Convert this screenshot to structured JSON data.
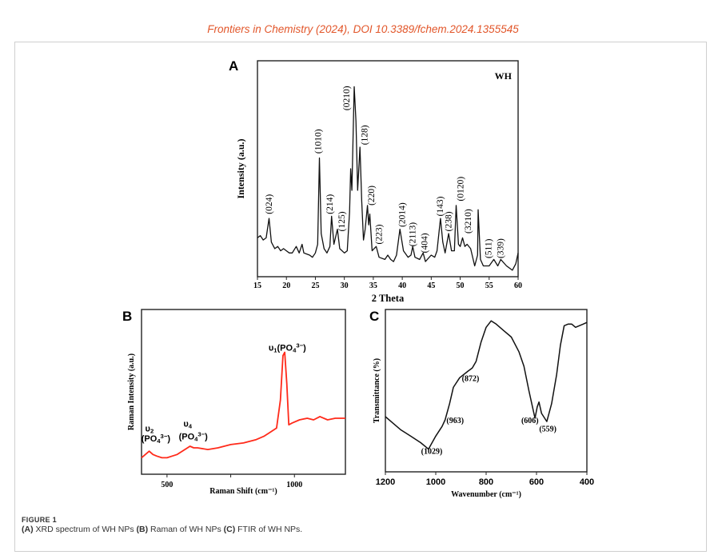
{
  "header": "Frontiers in Chemistry (2024), DOI 10.3389/fchem.2024.1355545",
  "caption": {
    "figure_label": "FIGURE 1",
    "parts": [
      {
        "tag": "(A)",
        "text": " XRD spectrum of WH NPs "
      },
      {
        "tag": "(B)",
        "text": " Raman of WH NPs "
      },
      {
        "tag": "(C)",
        "text": " FTIR of WH NPs."
      }
    ]
  },
  "colors": {
    "xrd": "#111111",
    "raman": "#ff2a1a",
    "ftir": "#111111",
    "header": "#e2562a"
  },
  "chart_data": [
    {
      "panel": "A",
      "type": "line",
      "title": "WH",
      "xlabel": "2 Theta",
      "ylabel": "Intensity (a.u.)",
      "xlim": [
        15,
        60
      ],
      "ylim": [
        0,
        100
      ],
      "xticks": [
        15,
        20,
        25,
        30,
        35,
        40,
        45,
        50,
        55,
        60
      ],
      "grid": false,
      "points": [
        [
          15,
          18
        ],
        [
          15.5,
          19
        ],
        [
          16,
          17
        ],
        [
          16.5,
          18
        ],
        [
          17,
          27
        ],
        [
          17.4,
          16
        ],
        [
          18,
          13
        ],
        [
          18.5,
          14
        ],
        [
          19,
          12
        ],
        [
          19.5,
          13
        ],
        [
          20,
          12
        ],
        [
          20.5,
          11
        ],
        [
          21,
          11
        ],
        [
          21.7,
          14
        ],
        [
          22.2,
          11
        ],
        [
          22.7,
          15
        ],
        [
          23,
          11
        ],
        [
          24,
          10
        ],
        [
          24.5,
          9
        ],
        [
          25,
          11
        ],
        [
          25.4,
          15
        ],
        [
          25.7,
          55
        ],
        [
          26,
          20
        ],
        [
          26.5,
          13
        ],
        [
          27,
          11
        ],
        [
          27.5,
          14
        ],
        [
          27.8,
          28
        ],
        [
          28.2,
          15
        ],
        [
          28.8,
          22
        ],
        [
          29.2,
          13
        ],
        [
          30,
          11
        ],
        [
          30.5,
          12
        ],
        [
          30.9,
          30
        ],
        [
          31.1,
          50
        ],
        [
          31.3,
          40
        ],
        [
          31.7,
          88
        ],
        [
          32,
          72
        ],
        [
          32.3,
          40
        ],
        [
          32.7,
          60
        ],
        [
          33,
          35
        ],
        [
          33.3,
          17
        ],
        [
          33.6,
          22
        ],
        [
          34,
          33
        ],
        [
          34.2,
          24
        ],
        [
          34.4,
          29
        ],
        [
          34.8,
          12
        ],
        [
          35.5,
          14
        ],
        [
          36,
          9
        ],
        [
          37,
          8
        ],
        [
          37.5,
          10
        ],
        [
          38,
          8
        ],
        [
          38.5,
          7
        ],
        [
          39,
          10
        ],
        [
          39.6,
          22
        ],
        [
          40.2,
          12
        ],
        [
          41,
          9
        ],
        [
          41.5,
          10
        ],
        [
          41.8,
          14
        ],
        [
          42.2,
          9
        ],
        [
          43,
          8
        ],
        [
          43.6,
          11
        ],
        [
          44,
          7
        ],
        [
          45,
          10
        ],
        [
          45.6,
          9
        ],
        [
          46,
          12
        ],
        [
          46.6,
          27
        ],
        [
          47,
          16
        ],
        [
          47.4,
          11
        ],
        [
          48,
          20
        ],
        [
          48.5,
          12
        ],
        [
          49,
          12
        ],
        [
          49.3,
          33
        ],
        [
          49.7,
          15
        ],
        [
          50,
          14
        ],
        [
          50.4,
          18
        ],
        [
          50.8,
          14
        ],
        [
          51.2,
          15
        ],
        [
          51.8,
          13
        ],
        [
          52.5,
          5
        ],
        [
          53,
          10
        ],
        [
          53.1,
          31
        ],
        [
          53.5,
          8
        ],
        [
          54,
          5
        ],
        [
          55,
          5
        ],
        [
          55.8,
          8
        ],
        [
          56.5,
          5
        ],
        [
          57,
          8
        ],
        [
          58,
          5
        ],
        [
          59,
          3
        ],
        [
          59.6,
          6
        ],
        [
          60,
          11
        ]
      ],
      "annotations": [
        {
          "text": "(024)",
          "x": 16.9,
          "y": 29
        },
        {
          "text": "(1010)",
          "x": 25.4,
          "y": 57
        },
        {
          "text": "(214)",
          "x": 27.4,
          "y": 29
        },
        {
          "text": "(125)",
          "x": 29.5,
          "y": 21
        },
        {
          "text": "(0210)",
          "x": 30.3,
          "y": 77
        },
        {
          "text": "(128)",
          "x": 33.4,
          "y": 61
        },
        {
          "text": "(220)",
          "x": 34.6,
          "y": 33
        },
        {
          "text": "(223)",
          "x": 35.9,
          "y": 15
        },
        {
          "text": "(2014)",
          "x": 39.9,
          "y": 23
        },
        {
          "text": "(2113)",
          "x": 41.7,
          "y": 14
        },
        {
          "text": "(404)",
          "x": 43.8,
          "y": 11
        },
        {
          "text": "(143)",
          "x": 46.5,
          "y": 28
        },
        {
          "text": "(238)",
          "x": 47.9,
          "y": 21
        },
        {
          "text": "(0120)",
          "x": 50.0,
          "y": 35
        },
        {
          "text": "(3210)",
          "x": 51.3,
          "y": 20
        },
        {
          "text": "(511)",
          "x": 54.8,
          "y": 8.5
        },
        {
          "text": "(339)",
          "x": 56.9,
          "y": 8.5
        }
      ]
    },
    {
      "panel": "B",
      "type": "line",
      "xlabel": "Raman Shift (cm⁻¹)",
      "ylabel": "Raman Intensity (a.u.)",
      "xlim": [
        400,
        1200
      ],
      "ylim": [
        0,
        100
      ],
      "xticks": [
        500,
        750,
        1000
      ],
      "xticklabels": [
        "500",
        "",
        "1000"
      ],
      "grid": false,
      "points": [
        [
          400,
          10
        ],
        [
          415,
          12
        ],
        [
          430,
          14
        ],
        [
          445,
          12
        ],
        [
          460,
          11
        ],
        [
          480,
          10
        ],
        [
          500,
          10
        ],
        [
          520,
          11
        ],
        [
          540,
          12
        ],
        [
          570,
          15
        ],
        [
          590,
          17
        ],
        [
          605,
          16
        ],
        [
          620,
          16
        ],
        [
          660,
          15
        ],
        [
          700,
          16
        ],
        [
          750,
          18
        ],
        [
          800,
          19
        ],
        [
          850,
          21
        ],
        [
          880,
          23
        ],
        [
          900,
          25
        ],
        [
          930,
          28
        ],
        [
          945,
          45
        ],
        [
          955,
          72
        ],
        [
          962,
          74
        ],
        [
          970,
          55
        ],
        [
          978,
          30
        ],
        [
          990,
          31
        ],
        [
          1020,
          33
        ],
        [
          1050,
          34
        ],
        [
          1075,
          33
        ],
        [
          1100,
          35
        ],
        [
          1130,
          33
        ],
        [
          1160,
          34
        ],
        [
          1200,
          34
        ]
      ],
      "annotations": [
        {
          "x": 972,
          "y": 75,
          "segments": [
            {
              "t": "υ"
            },
            {
              "t": "1",
              "s": "sub"
            },
            {
              "t": "(PO"
            },
            {
              "t": "4",
              "s": "sub"
            },
            {
              "t": "3−",
              "s": "sup"
            },
            {
              "t": ")"
            }
          ]
        },
        {
          "x": 431,
          "y": 26,
          "segments": [
            {
              "t": "υ"
            },
            {
              "t": "2",
              "s": "sub"
            }
          ]
        },
        {
          "x": 456,
          "y": 20,
          "segments": [
            {
              "t": "(PO"
            },
            {
              "t": "4",
              "s": "sub"
            },
            {
              "t": "3−",
              "s": "sup"
            },
            {
              "t": ")"
            }
          ]
        },
        {
          "x": 581,
          "y": 29,
          "segments": [
            {
              "t": "υ"
            },
            {
              "t": "4",
              "s": "sub"
            }
          ]
        },
        {
          "x": 603,
          "y": 21,
          "segments": [
            {
              "t": "(PO"
            },
            {
              "t": "4",
              "s": "sub"
            },
            {
              "t": "3−",
              "s": "sup"
            },
            {
              "t": ")"
            }
          ]
        }
      ]
    },
    {
      "panel": "C",
      "type": "line",
      "xlabel": "Wavenumber (cm⁻¹)",
      "ylabel": "Transmittance (%)",
      "xlim": [
        1200,
        400
      ],
      "ylim": [
        0,
        100
      ],
      "xticks": [
        1200,
        1000,
        800,
        600,
        400
      ],
      "grid": false,
      "points": [
        [
          1200,
          34
        ],
        [
          1170,
          30
        ],
        [
          1140,
          26
        ],
        [
          1100,
          22
        ],
        [
          1060,
          18
        ],
        [
          1029,
          14
        ],
        [
          1000,
          22
        ],
        [
          975,
          28
        ],
        [
          963,
          32
        ],
        [
          945,
          42
        ],
        [
          930,
          52
        ],
        [
          905,
          58
        ],
        [
          872,
          62
        ],
        [
          855,
          64
        ],
        [
          840,
          68
        ],
        [
          820,
          80
        ],
        [
          800,
          89
        ],
        [
          780,
          93
        ],
        [
          760,
          91
        ],
        [
          730,
          87
        ],
        [
          700,
          83
        ],
        [
          670,
          74
        ],
        [
          650,
          65
        ],
        [
          630,
          50
        ],
        [
          606,
          33
        ],
        [
          597,
          40
        ],
        [
          590,
          43
        ],
        [
          580,
          36
        ],
        [
          559,
          31
        ],
        [
          540,
          42
        ],
        [
          520,
          60
        ],
        [
          505,
          78
        ],
        [
          490,
          90
        ],
        [
          475,
          91
        ],
        [
          460,
          91
        ],
        [
          445,
          89
        ],
        [
          430,
          90
        ],
        [
          415,
          91
        ],
        [
          400,
          92
        ]
      ],
      "annotations": [
        {
          "text": "(1029)",
          "x": 1016,
          "y": 11
        },
        {
          "text": "(963)",
          "x": 923,
          "y": 30
        },
        {
          "text": "(872)",
          "x": 862,
          "y": 56
        },
        {
          "text": "(606)",
          "x": 626,
          "y": 30
        },
        {
          "text": "(559)",
          "x": 555,
          "y": 25
        }
      ]
    }
  ]
}
